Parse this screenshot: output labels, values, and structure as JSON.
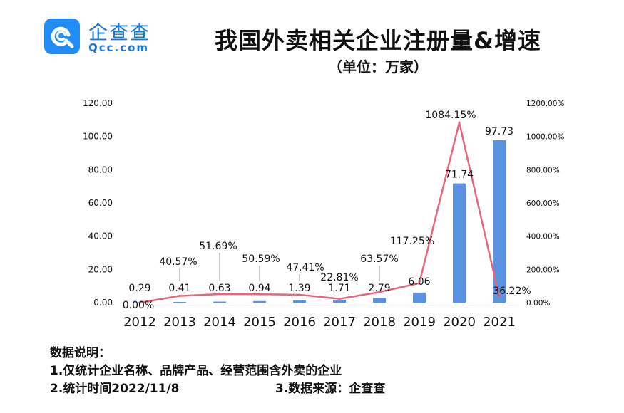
{
  "logo": {
    "name": "企查查",
    "sub": "Qcc.com",
    "icon": "qcc-logo-icon"
  },
  "title": "我国外卖相关企业注册量&增速",
  "subtitle": "（单位：万家）",
  "notes": {
    "heading": "数据说明：",
    "line1": "1.仅统计企业名称、品牌产品、经营范围含外卖的企业",
    "line2": "2.统计时间2022/11/8",
    "source": "3.数据来源：企查查"
  },
  "colors": {
    "bar": "#5b93e2",
    "line": "#e4677c",
    "text": "#111111"
  },
  "chart_data": {
    "type": "bar",
    "categories": [
      "2012",
      "2013",
      "2014",
      "2015",
      "2016",
      "2017",
      "2018",
      "2019",
      "2020",
      "2021"
    ],
    "series": [
      {
        "type": "bar",
        "axis": "left",
        "values": [
          0.29,
          0.41,
          0.63,
          0.94,
          1.39,
          1.71,
          2.79,
          6.06,
          71.74,
          97.73
        ],
        "labels": [
          "0.29",
          "0.41",
          "0.63",
          "0.94",
          "1.39",
          "1.71",
          "2.79",
          "6.06",
          "71.74",
          "97.73"
        ]
      },
      {
        "type": "line",
        "axis": "right",
        "values": [
          0.0,
          40.57,
          51.69,
          50.59,
          47.41,
          22.81,
          63.57,
          117.25,
          1084.15,
          36.22
        ],
        "labels": [
          "0.00%",
          "40.57%",
          "51.69%",
          "50.59%",
          "47.41%",
          "22.81%",
          "63.57%",
          "117.25%",
          "1084.15%",
          "36.22%"
        ]
      }
    ],
    "yleft": {
      "range": [
        0,
        120
      ],
      "ticks": [
        "0.00",
        "20.00",
        "40.00",
        "60.00",
        "80.00",
        "100.00",
        "120.00"
      ]
    },
    "yright": {
      "range": [
        0,
        1200
      ],
      "ticks": [
        "0.00%",
        "200.00%",
        "400.00%",
        "600.00%",
        "800.00%",
        "1000.00%",
        "1200.00%"
      ]
    },
    "grid": false,
    "legend": "none"
  }
}
